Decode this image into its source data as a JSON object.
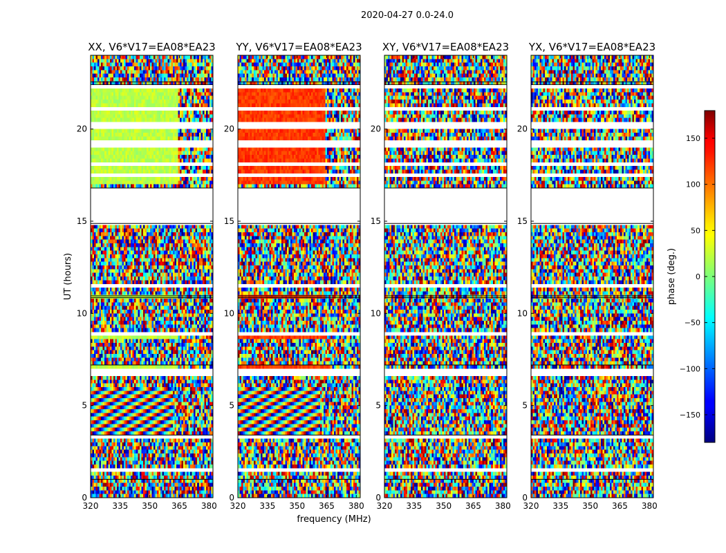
{
  "chart_data": {
    "type": "heatmap",
    "suptitle": "2020-04-27 0.0-24.0",
    "xlabel": "frequency (MHz)",
    "ylabel": "UT (hours)",
    "xlim": [
      320,
      382
    ],
    "ylim": [
      0,
      24
    ],
    "xticks": [
      320,
      335,
      350,
      365,
      380
    ],
    "yticks": [
      0,
      5,
      10,
      15,
      20
    ],
    "panels": [
      {
        "title": "XX, V6*V17=EA08*EA23",
        "pol": "XX"
      },
      {
        "title": "YY, V6*V17=EA08*EA23",
        "pol": "YY"
      },
      {
        "title": "XY, V6*V17=EA08*EA23",
        "pol": "XY"
      },
      {
        "title": "YX, V6*V17=EA08*EA23",
        "pol": "YX"
      }
    ],
    "colorbar": {
      "label": "phase (deg.)",
      "colormap": "jet",
      "range": [
        -180,
        180
      ],
      "ticks": [
        -150,
        -100,
        -50,
        0,
        50,
        100,
        150
      ]
    },
    "flagged_ut_ranges": [
      [
        16.8,
        14.9
      ],
      [
        22.3,
        22.6
      ],
      [
        22.6,
        23.0
      ],
      [
        6.9,
        7.05
      ]
    ],
    "data_gaps_ut": [
      [
        14.9,
        16.8
      ]
    ],
    "colors": {
      "flagged": "#ffffff",
      "axes": "#000000"
    }
  }
}
